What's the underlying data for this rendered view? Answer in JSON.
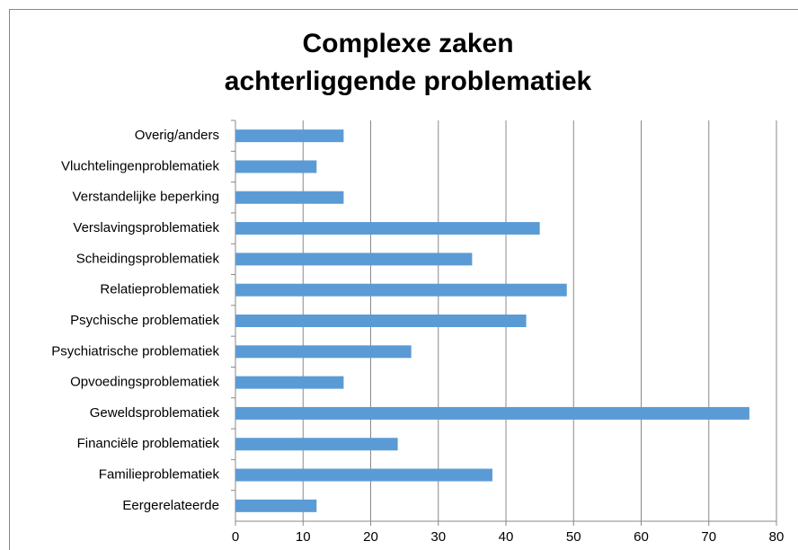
{
  "chart_data": {
    "type": "bar",
    "orientation": "horizontal",
    "title": [
      "Complexe zaken",
      "achterliggende problematiek"
    ],
    "categories": [
      "Overig/anders",
      "Vluchtelingenproblematiek",
      "Verstandelijke beperking",
      "Verslavingsproblematiek",
      "Scheidingsproblematiek",
      "Relatieproblematiek",
      "Psychische problematiek",
      "Psychiatrische problematiek",
      "Opvoedingsproblematiek",
      "Geweldsproblematiek",
      "Financiële problematiek",
      "Familieproblematiek",
      "Eergerelateerde"
    ],
    "values": [
      16,
      12,
      16,
      45,
      35,
      49,
      43,
      26,
      16,
      76,
      24,
      38,
      12
    ],
    "color": "#5b9bd5",
    "xlim": [
      0,
      80
    ],
    "xticks": [
      0,
      10,
      20,
      30,
      40,
      50,
      60,
      70,
      80
    ],
    "grid": true
  }
}
